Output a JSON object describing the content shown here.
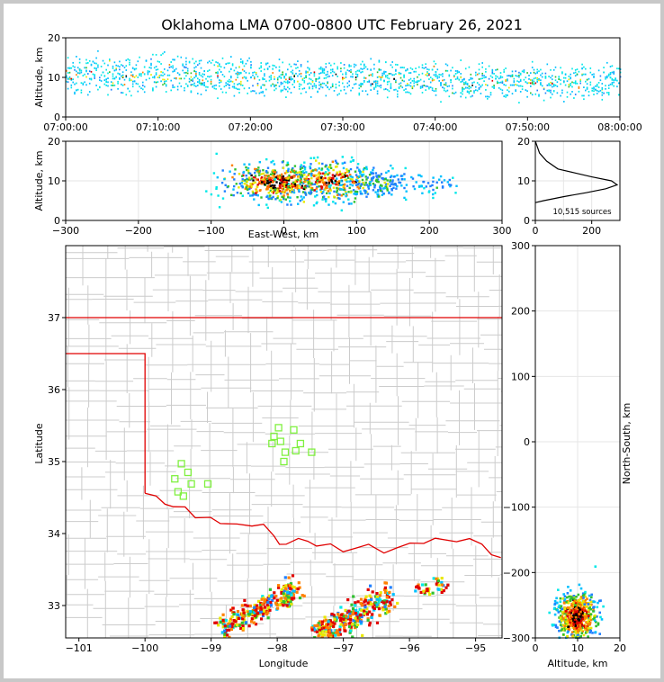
{
  "chart_data": [
    {
      "type": "heatmap",
      "panel": "altitude-time",
      "title": "Oklahoma LMA 0700-0800 UTC February 26, 2021",
      "xlabel": "",
      "ylabel": "Altitude, km",
      "xlim": [
        "07:00:00",
        "08:00:00"
      ],
      "ylim": [
        0,
        20
      ],
      "xticks": [
        "07:00:00",
        "07:10:00",
        "07:20:00",
        "07:30:00",
        "07:40:00",
        "07:50:00",
        "08:00:00"
      ],
      "yticks": [
        0,
        10,
        20
      ],
      "bands": [
        {
          "from_min": 0,
          "to_min": 20,
          "alt_low": 7,
          "alt_high": 14
        },
        {
          "from_min": 20,
          "to_min": 40,
          "alt_low": 7,
          "alt_high": 13
        },
        {
          "from_min": 40,
          "to_min": 60,
          "alt_low": 6,
          "alt_high": 12
        }
      ]
    },
    {
      "type": "heatmap",
      "panel": "altitude-eastwest",
      "xlabel": "East-West, km",
      "ylabel": "Altitude, km",
      "xlim": [
        -300,
        300
      ],
      "ylim": [
        0,
        20
      ],
      "xticks": [
        -300,
        -200,
        -100,
        0,
        100,
        200,
        300
      ],
      "yticks": [
        0,
        10,
        20
      ],
      "clusters": [
        {
          "x": -10,
          "alt": 9.5,
          "sx": 35,
          "sa": 2.3,
          "n": 520
        },
        {
          "x": 70,
          "alt": 10,
          "sx": 28,
          "sa": 2.5,
          "n": 300
        },
        {
          "x": 130,
          "alt": 9,
          "sx": 28,
          "sa": 2.0,
          "n": 160
        },
        {
          "x": 210,
          "alt": 9,
          "sx": 14,
          "sa": 1.0,
          "n": 30
        }
      ]
    },
    {
      "type": "line",
      "panel": "altitude-histogram",
      "annotation": "10,515 sources",
      "xlim": [
        0,
        300
      ],
      "ylim": [
        0,
        20
      ],
      "xticks": [
        0,
        200
      ],
      "yticks": [
        0,
        10,
        20
      ],
      "points": [
        {
          "x": 0,
          "y": 4.5
        },
        {
          "x": 30,
          "y": 5
        },
        {
          "x": 100,
          "y": 6
        },
        {
          "x": 180,
          "y": 7
        },
        {
          "x": 250,
          "y": 8
        },
        {
          "x": 290,
          "y": 9
        },
        {
          "x": 270,
          "y": 10
        },
        {
          "x": 200,
          "y": 11
        },
        {
          "x": 140,
          "y": 12
        },
        {
          "x": 80,
          "y": 13
        },
        {
          "x": 40,
          "y": 15
        },
        {
          "x": 15,
          "y": 17
        },
        {
          "x": 5,
          "y": 19
        },
        {
          "x": 0,
          "y": 20
        }
      ]
    },
    {
      "type": "scatter",
      "panel": "plan-view-map",
      "xlabel": "Longitude",
      "ylabel": "Latitude",
      "xlim": [
        -101.2,
        -94.6
      ],
      "ylim": [
        32.55,
        38.0
      ],
      "xticks": [
        -101,
        -100,
        -99,
        -98,
        -97,
        -96,
        -95
      ],
      "yticks": [
        33,
        34,
        35,
        36,
        37
      ],
      "stations": [
        [
          -97.98,
          35.47
        ],
        [
          -98.05,
          35.35
        ],
        [
          -98.08,
          35.25
        ],
        [
          -97.95,
          35.28
        ],
        [
          -97.75,
          35.44
        ],
        [
          -97.65,
          35.25
        ],
        [
          -97.72,
          35.15
        ],
        [
          -97.88,
          35.13
        ],
        [
          -97.48,
          35.13
        ],
        [
          -97.9,
          35.0
        ],
        [
          -99.45,
          34.97
        ],
        [
          -99.35,
          34.85
        ],
        [
          -99.55,
          34.76
        ],
        [
          -99.3,
          34.69
        ],
        [
          -99.05,
          34.69
        ],
        [
          -99.5,
          34.58
        ],
        [
          -99.42,
          34.52
        ]
      ],
      "storm_bands": [
        {
          "from": [
            -98.85,
            32.7
          ],
          "to": [
            -97.7,
            33.2
          ],
          "width": 0.08,
          "n": 260
        },
        {
          "from": [
            -97.45,
            32.58
          ],
          "to": [
            -96.25,
            33.12
          ],
          "width": 0.1,
          "n": 320
        },
        {
          "from": [
            -97.85,
            33.0
          ],
          "to": [
            -97.8,
            33.35
          ],
          "width": 0.06,
          "n": 40
        },
        {
          "from": [
            -95.9,
            33.2
          ],
          "to": [
            -95.45,
            33.3
          ],
          "width": 0.05,
          "n": 40
        }
      ]
    },
    {
      "type": "heatmap",
      "panel": "northsouth-altitude",
      "xlabel": "Altitude, km",
      "ylabel": "North-South, km",
      "xlim": [
        0,
        20
      ],
      "ylim": [
        -300,
        300
      ],
      "xticks": [
        0,
        10,
        20
      ],
      "yticks": [
        -300,
        -200,
        -100,
        0,
        100,
        200,
        300
      ],
      "clusters": [
        {
          "alt": 10,
          "y": -268,
          "sa": 2.2,
          "sy": 18,
          "n": 600
        }
      ]
    }
  ],
  "colors": {
    "state_border": "#e00000",
    "county_lines": "#cccccc",
    "stations": "#80f040",
    "density_scale": [
      "#00e8e8",
      "#00c0ff",
      "#2080ff",
      "#30c030",
      "#e8e800",
      "#ff8000",
      "#e00000",
      "#000000"
    ]
  }
}
